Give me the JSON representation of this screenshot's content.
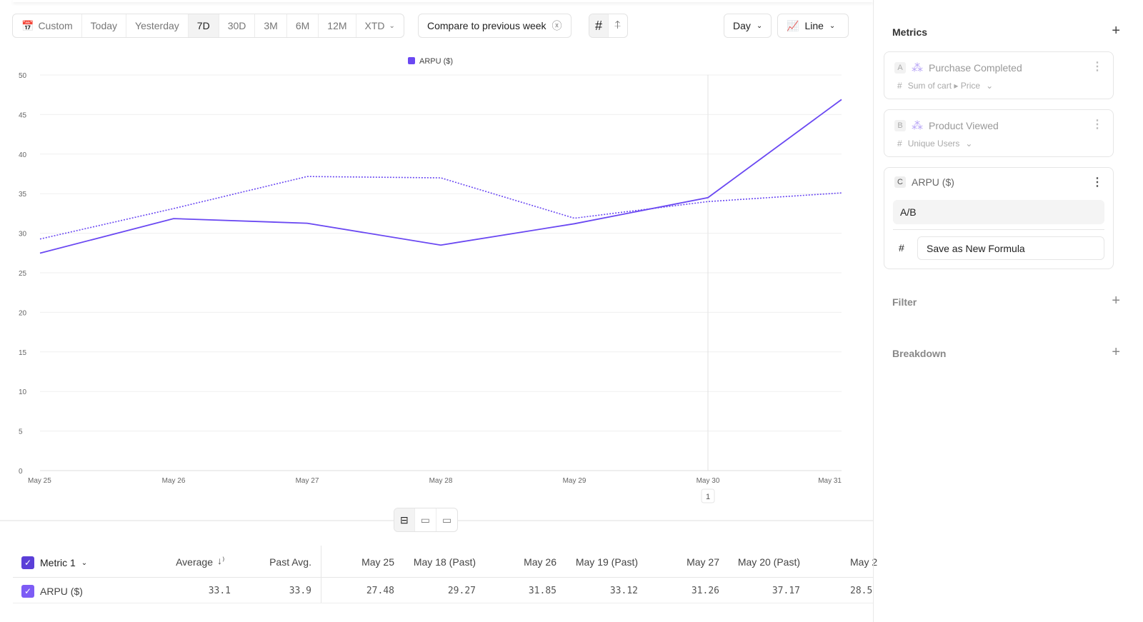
{
  "toolbar": {
    "ranges": [
      "Custom",
      "Today",
      "Yesterday",
      "7D",
      "30D",
      "3M",
      "6M",
      "12M",
      "XTD"
    ],
    "active_range": "7D",
    "compare": "Compare to previous week",
    "granularity": "Day",
    "chart_type": "Line"
  },
  "chart_data": {
    "type": "line",
    "legend": [
      {
        "name": "ARPU ($)",
        "color": "#6a48f2"
      }
    ],
    "legend_placement": "top",
    "categories": [
      "May 25",
      "May 26",
      "May 27",
      "May 28",
      "May 29",
      "May 30",
      "May 31"
    ],
    "series": [
      {
        "name": "ARPU ($)",
        "style": "solid",
        "values": [
          27.48,
          31.85,
          31.26,
          28.5,
          31.2,
          34.5,
          46.9
        ]
      },
      {
        "style": "dotted",
        "values": [
          29.27,
          33.12,
          37.17,
          37.0,
          31.9,
          34.0,
          35.1
        ]
      }
    ],
    "yticks": [
      0,
      5,
      10,
      15,
      20,
      25,
      30,
      35,
      40,
      45,
      50
    ],
    "ylim": [
      0,
      50
    ],
    "grid": true,
    "marker_label": "1",
    "marker_category": "May 30",
    "color": "#6a48f2"
  },
  "table": {
    "headers": [
      "Metric 1",
      "Average",
      "Past Avg.",
      "May 25",
      "May 18 (Past)",
      "May 26",
      "May 19 (Past)",
      "May 27",
      "May 20 (Past)",
      "May 2"
    ],
    "row": {
      "name": "ARPU ($)",
      "values": [
        "33.1",
        "33.9",
        "27.48",
        "29.27",
        "31.85",
        "33.12",
        "31.26",
        "37.17",
        "28.5"
      ]
    }
  },
  "sidebar": {
    "metrics_title": "Metrics",
    "metrics": [
      {
        "letter": "A",
        "name": "Purchase Completed",
        "sub": "Sum of cart ▸ Price"
      },
      {
        "letter": "B",
        "name": "Product Viewed",
        "sub": "Unique Users"
      },
      {
        "letter": "C",
        "name": "ARPU ($)",
        "formula": "A/B",
        "save": "Save as New Formula"
      }
    ],
    "filter": "Filter",
    "breakdown": "Breakdown"
  }
}
